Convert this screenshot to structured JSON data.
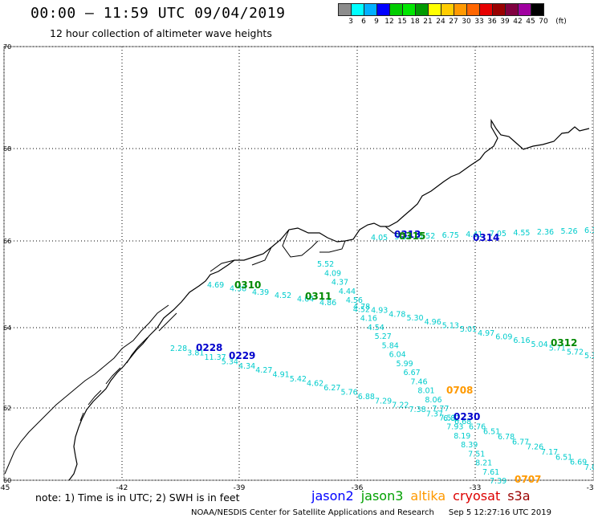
{
  "title": "00:00 – 11:59 UTC 09/04/2019",
  "subtitle": "12 hour collection of altimeter wave heights",
  "colorbar": {
    "labels": [
      "3",
      "6",
      "9",
      "12",
      "15",
      "18",
      "21",
      "24",
      "27",
      "30",
      "33",
      "36",
      "39",
      "42",
      "45",
      "70",
      "(ft)"
    ],
    "colors": [
      "#8c8c8c",
      "#00ffff",
      "#00b0ff",
      "#0000ff",
      "#00cc00",
      "#00e600",
      "#009900",
      "#ffff00",
      "#ffcc00",
      "#ff9900",
      "#ff6600",
      "#e60000",
      "#990000",
      "#800040",
      "#a000a0",
      "#000000"
    ]
  },
  "axes": {
    "lat_labels": [
      "70",
      "68",
      "66",
      "64",
      "62",
      "60"
    ],
    "lon_labels": [
      "-45",
      "-42",
      "-39",
      "-36",
      "-33",
      "-30"
    ]
  },
  "passes": [
    {
      "label": "0228",
      "color": "#0000cc"
    },
    {
      "label": "0229",
      "color": "#0000cc"
    },
    {
      "label": "0310",
      "color": "#008800"
    },
    {
      "label": "0311",
      "color": "#008800"
    },
    {
      "label": "0312",
      "color": "#008800"
    },
    {
      "label": "0313",
      "color": "#0000cc"
    },
    {
      "label": "0314",
      "color": "#0000cc"
    },
    {
      "label": "0315",
      "color": "#008800"
    },
    {
      "label": "0230",
      "color": "#0000cc"
    },
    {
      "label": "0708",
      "color": "#ff9900"
    },
    {
      "label": "0707",
      "color": "#ff9900"
    }
  ],
  "track_values": {
    "jason_0229": [
      "2.28",
      "3.81",
      "11.37",
      "5.34",
      "4.34",
      "4.27",
      "4.91",
      "5.42",
      "4.62",
      "6.27",
      "5.76",
      "6.88",
      "7.29",
      "7.22",
      "7.38",
      "7.37",
      "6.82"
    ],
    "jason_0310": [
      "4.69",
      "4.38",
      "4.39",
      "4.52",
      "4.64",
      "4.86"
    ],
    "north_track": [
      "5.52",
      "4.09",
      "4.37",
      "4.44",
      "4.56",
      "4.52",
      "4.16",
      "4.54",
      "5.27",
      "5.84",
      "6.04",
      "5.99",
      "6.67",
      "7.46",
      "8.01",
      "8.06",
      "7.77",
      "7.53",
      "7.93",
      "8.19",
      "8.39",
      "7.51",
      "8.21",
      "7.61",
      "7.39"
    ],
    "track_0311": [
      "4.78",
      "4.93",
      "4.78",
      "5.30",
      "4.96",
      "5.13",
      "5.01",
      "4.97",
      "6.09",
      "6.16",
      "5.04",
      "5.71",
      "5.72",
      "5.36"
    ],
    "track_0230": [
      "6.68",
      "6.76",
      "6.51",
      "6.78",
      "6.77",
      "7.26",
      "7.17",
      "6.51",
      "6.69",
      "7.02"
    ],
    "top_track": [
      "4.05",
      "5.34",
      "5.52",
      "6.75",
      "4.41",
      "7.05",
      "4.55",
      "2.36",
      "5.26",
      "6.30"
    ]
  },
  "note": "note:  1) Time is in UTC;  2) SWH is in feet",
  "legend": [
    {
      "name": "jason2",
      "color": "#0000ff"
    },
    {
      "name": "jason3",
      "color": "#00a000"
    },
    {
      "name": "altika",
      "color": "#ff9900"
    },
    {
      "name": "cryosat",
      "color": "#dd0000"
    },
    {
      "name": "s3a",
      "color": "#990000"
    }
  ],
  "footer": {
    "org": "NOAA/NESDIS Center for Satellite Applications and Research",
    "timestamp": "Sep  5 12:27:16 UTC 2019"
  }
}
